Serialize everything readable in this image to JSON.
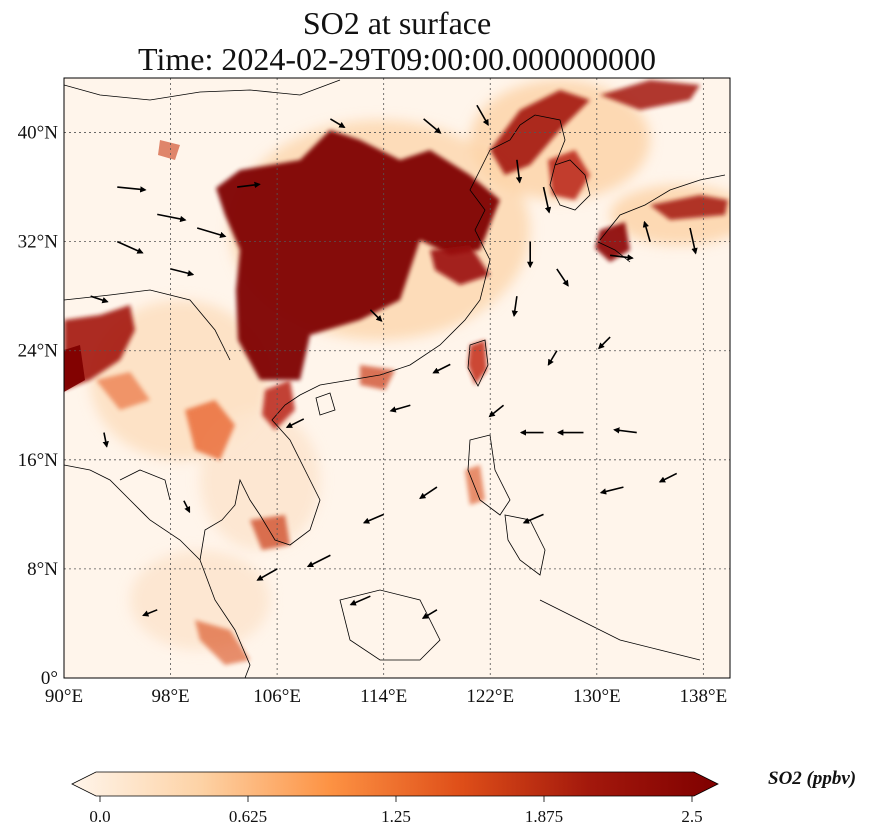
{
  "title_line1": "SO2 at surface",
  "title_line2": "Time: 2024-02-29T09:00:00.000000000",
  "x_ticks": [
    "90°E",
    "98°E",
    "106°E",
    "114°E",
    "122°E",
    "130°E",
    "138°E"
  ],
  "y_ticks": [
    "0°",
    "8°N",
    "16°N",
    "24°N",
    "32°N",
    "40°N"
  ],
  "colorbar": {
    "label": "SO2 (ppbv)",
    "ticks": [
      "0.0",
      "0.625",
      "1.25",
      "1.875",
      "2.5"
    ],
    "colors": [
      "#fff5eb",
      "#fdd2a5",
      "#fd9243",
      "#df4f19",
      "#a3180c",
      "#7f0000"
    ]
  },
  "chart_data": {
    "type": "heatmap",
    "variable": "SO2",
    "units": "ppbv",
    "lon_range": [
      90,
      140
    ],
    "lat_range": [
      0,
      44
    ],
    "value_range": [
      0.0,
      2.5
    ],
    "grid": true,
    "hotspots": [
      {
        "lon": 114,
        "lat": 34,
        "value": 2.5
      },
      {
        "lon": 117,
        "lat": 38,
        "value": 2.5
      },
      {
        "lon": 110,
        "lat": 29,
        "value": 2.5
      },
      {
        "lon": 106,
        "lat": 28,
        "value": 2.5
      },
      {
        "lon": 121,
        "lat": 31,
        "value": 2.1
      },
      {
        "lon": 123,
        "lat": 41,
        "value": 2.0
      },
      {
        "lon": 126,
        "lat": 35,
        "value": 1.8
      },
      {
        "lon": 131,
        "lat": 34,
        "value": 2.0
      },
      {
        "lon": 136,
        "lat": 35,
        "value": 1.9
      },
      {
        "lon": 121,
        "lat": 24,
        "value": 1.8
      },
      {
        "lon": 92,
        "lat": 24,
        "value": 2.0
      },
      {
        "lon": 105,
        "lat": 21,
        "value": 1.8
      },
      {
        "lon": 100,
        "lat": 19,
        "value": 1.4
      },
      {
        "lon": 106,
        "lat": 11,
        "value": 1.3
      },
      {
        "lon": 113,
        "lat": 22,
        "value": 1.5
      },
      {
        "lon": 101,
        "lat": 4,
        "value": 1.3
      },
      {
        "lon": 121,
        "lat": 15,
        "value": 1.2
      }
    ],
    "wind_vectors": [
      {
        "lon": 94,
        "lat": 36,
        "u": 1.0,
        "v": -0.1
      },
      {
        "lon": 97,
        "lat": 34,
        "u": 1.0,
        "v": -0.2
      },
      {
        "lon": 100,
        "lat": 33,
        "u": 1.0,
        "v": -0.3
      },
      {
        "lon": 94,
        "lat": 32,
        "u": 0.9,
        "v": -0.4
      },
      {
        "lon": 103,
        "lat": 36,
        "u": 0.8,
        "v": 0.1
      },
      {
        "lon": 98,
        "lat": 30,
        "u": 0.8,
        "v": -0.2
      },
      {
        "lon": 92,
        "lat": 28,
        "u": 0.6,
        "v": -0.2
      },
      {
        "lon": 117,
        "lat": 41,
        "u": 0.6,
        "v": -0.5
      },
      {
        "lon": 121,
        "lat": 42,
        "u": 0.4,
        "v": -0.7
      },
      {
        "lon": 124,
        "lat": 38,
        "u": 0.1,
        "v": -0.8
      },
      {
        "lon": 126,
        "lat": 36,
        "u": 0.2,
        "v": -0.9
      },
      {
        "lon": 125,
        "lat": 32,
        "u": 0.0,
        "v": -0.9
      },
      {
        "lon": 127,
        "lat": 30,
        "u": 0.4,
        "v": -0.6
      },
      {
        "lon": 131,
        "lat": 31,
        "u": 0.8,
        "v": -0.1
      },
      {
        "lon": 134,
        "lat": 32,
        "u": -0.2,
        "v": 0.7
      },
      {
        "lon": 137,
        "lat": 33,
        "u": 0.2,
        "v": -0.9
      },
      {
        "lon": 131,
        "lat": 25,
        "u": -0.4,
        "v": -0.4
      },
      {
        "lon": 127,
        "lat": 24,
        "u": -0.3,
        "v": -0.5
      },
      {
        "lon": 123,
        "lat": 20,
        "u": -0.5,
        "v": -0.4
      },
      {
        "lon": 126,
        "lat": 18,
        "u": -0.8,
        "v": 0.0
      },
      {
        "lon": 129,
        "lat": 18,
        "u": -0.9,
        "v": 0.0
      },
      {
        "lon": 133,
        "lat": 18,
        "u": -0.8,
        "v": 0.1
      },
      {
        "lon": 132,
        "lat": 14,
        "u": -0.8,
        "v": -0.2
      },
      {
        "lon": 126,
        "lat": 12,
        "u": -0.7,
        "v": -0.3
      },
      {
        "lon": 118,
        "lat": 14,
        "u": -0.6,
        "v": -0.4
      },
      {
        "lon": 114,
        "lat": 12,
        "u": -0.7,
        "v": -0.3
      },
      {
        "lon": 110,
        "lat": 9,
        "u": -0.8,
        "v": -0.4
      },
      {
        "lon": 106,
        "lat": 8,
        "u": -0.7,
        "v": -0.4
      },
      {
        "lon": 113,
        "lat": 6,
        "u": -0.7,
        "v": -0.3
      },
      {
        "lon": 118,
        "lat": 5,
        "u": -0.5,
        "v": -0.3
      },
      {
        "lon": 97,
        "lat": 5,
        "u": -0.5,
        "v": -0.2
      },
      {
        "lon": 99,
        "lat": 13,
        "u": 0.2,
        "v": -0.4
      },
      {
        "lon": 93,
        "lat": 18,
        "u": 0.1,
        "v": -0.5
      },
      {
        "lon": 108,
        "lat": 19,
        "u": -0.6,
        "v": -0.3
      },
      {
        "lon": 116,
        "lat": 20,
        "u": -0.7,
        "v": -0.2
      },
      {
        "lon": 119,
        "lat": 23,
        "u": -0.6,
        "v": -0.3
      },
      {
        "lon": 136,
        "lat": 15,
        "u": -0.6,
        "v": -0.3
      },
      {
        "lon": 124,
        "lat": 28,
        "u": -0.1,
        "v": -0.7
      },
      {
        "lon": 113,
        "lat": 27,
        "u": 0.4,
        "v": -0.4
      },
      {
        "lon": 110,
        "lat": 41,
        "u": 0.5,
        "v": -0.3
      }
    ]
  }
}
